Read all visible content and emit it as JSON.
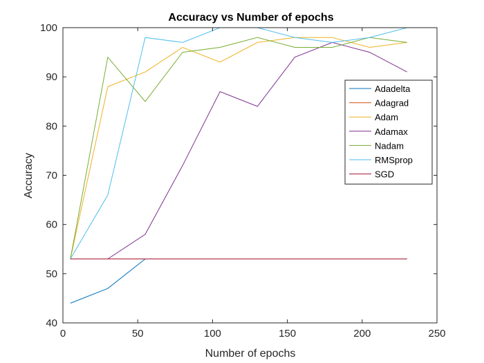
{
  "chart_data": {
    "type": "line",
    "title": "Accuracy vs Number of epochs",
    "xlabel": "Number of epochs",
    "ylabel": "Accuracy",
    "xlim": [
      0,
      250
    ],
    "ylim": [
      40,
      100
    ],
    "xticks": [
      0,
      50,
      100,
      150,
      200,
      250
    ],
    "yticks": [
      40,
      50,
      60,
      70,
      80,
      90,
      100
    ],
    "grid": false,
    "legend_position": "right-upper",
    "x": [
      5,
      30,
      55,
      80,
      105,
      130,
      155,
      180,
      205,
      230
    ],
    "series": [
      {
        "name": "Adadelta",
        "color": "#0072BD",
        "values": [
          44,
          47,
          53,
          53,
          53,
          53,
          53,
          53,
          53,
          53
        ]
      },
      {
        "name": "Adagrad",
        "color": "#D95319",
        "values": [
          53,
          53,
          53,
          53,
          53,
          53,
          53,
          53,
          53,
          53
        ]
      },
      {
        "name": "Adam",
        "color": "#EDB120",
        "values": [
          53,
          88,
          91,
          96,
          93,
          97,
          98,
          98,
          96,
          97
        ]
      },
      {
        "name": "Adamax",
        "color": "#7E2F8E",
        "values": [
          53,
          53,
          58,
          72,
          87,
          84,
          94,
          97,
          95,
          91
        ]
      },
      {
        "name": "Nadam",
        "color": "#77AC30",
        "values": [
          53,
          94,
          85,
          95,
          96,
          98,
          96,
          96,
          98,
          97
        ]
      },
      {
        "name": "RMSprop",
        "color": "#4DBEEE",
        "values": [
          53,
          66,
          98,
          97,
          100,
          100,
          98,
          97,
          98,
          100
        ]
      },
      {
        "name": "SGD",
        "color": "#A2142F",
        "values": [
          53,
          53,
          53,
          53,
          53,
          53,
          53,
          53,
          53,
          53
        ]
      }
    ]
  }
}
